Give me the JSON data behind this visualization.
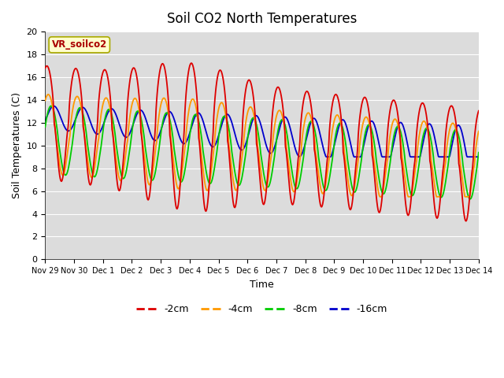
{
  "title": "Soil CO2 North Temperatures",
  "xlabel": "Time",
  "ylabel": "Soil Temperatures (C)",
  "ylim": [
    0,
    20
  ],
  "xtick_labels": [
    "Nov 29",
    "Nov 30",
    "Dec 1",
    "Dec 2",
    "Dec 3",
    "Dec 4",
    "Dec 5",
    "Dec 6",
    "Dec 7",
    "Dec 8",
    "Dec 9",
    "Dec 10",
    "Dec 11",
    "Dec 12",
    "Dec 13",
    "Dec 14"
  ],
  "legend_label": "VR_soilco2",
  "series": {
    "-2cm": {
      "color": "#dd0000"
    },
    "-4cm": {
      "color": "#ff9900"
    },
    "-8cm": {
      "color": "#00cc00"
    },
    "-16cm": {
      "color": "#0000cc"
    }
  },
  "plot_bg_color": "#dcdcdc",
  "title_fontsize": 12,
  "axis_label_fontsize": 9,
  "tick_fontsize": 8,
  "legend_box_color": "#ffffcc",
  "legend_box_edge_color": "#aaaa00"
}
